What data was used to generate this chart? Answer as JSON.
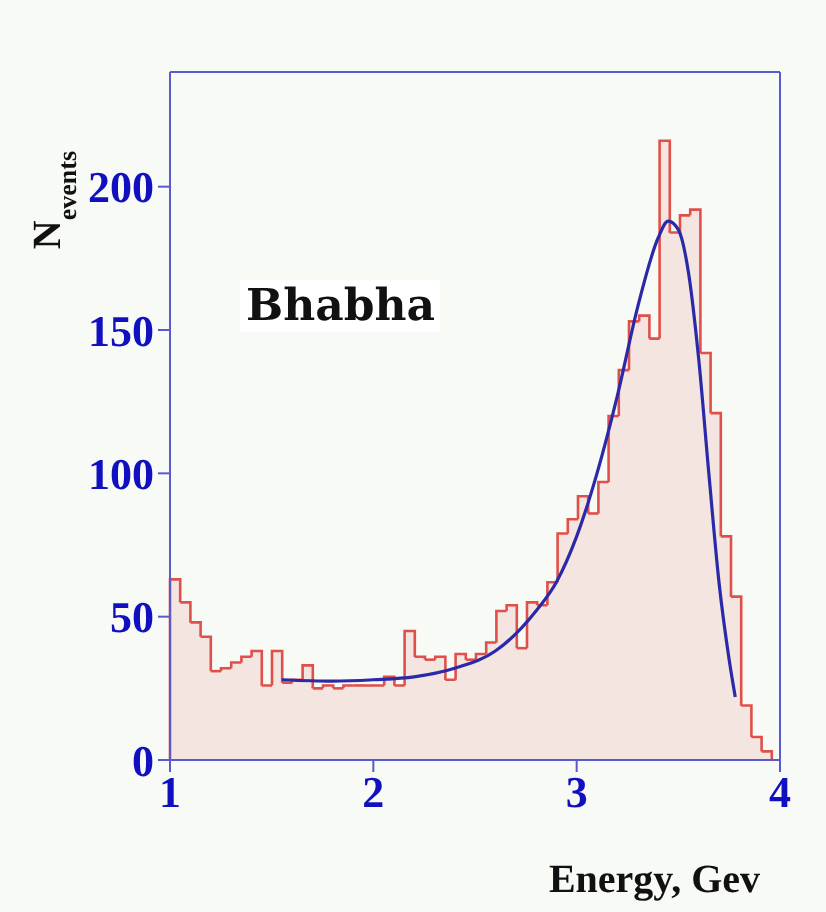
{
  "chart_data": {
    "type": "histogram",
    "xlabel": "Energy, Gev",
    "ylabel": "N$_{events}$",
    "annotations": [
      "Bhabha"
    ],
    "xlim": [
      1,
      4
    ],
    "xticks": [
      1,
      2,
      3,
      4
    ],
    "ylim": [
      0,
      240
    ],
    "yticks": [
      0,
      50,
      100,
      150,
      200
    ],
    "grid": false,
    "legend": false,
    "series": [
      {
        "type": "histogram",
        "color": "#e0504a",
        "bins": [
          1,
          1.05,
          1.1,
          1.15,
          1.2,
          1.25,
          1.3,
          1.35,
          1.4,
          1.45,
          1.5,
          1.55,
          1.6,
          1.65,
          1.7,
          1.75,
          1.8,
          1.85,
          1.9,
          1.95,
          2,
          2.05,
          2.1,
          2.15,
          2.2,
          2.25,
          2.3,
          2.35,
          2.4,
          2.45,
          2.5,
          2.55,
          2.6,
          2.65,
          2.7,
          2.75,
          2.8,
          2.85,
          2.9,
          2.95,
          3,
          3.05,
          3.1,
          3.15,
          3.2,
          3.25,
          3.3,
          3.35,
          3.4,
          3.45,
          3.5,
          3.55,
          3.6,
          3.65,
          3.7,
          3.75,
          3.8,
          3.85,
          3.9,
          3.95
        ],
        "values": [
          63,
          55,
          48,
          43,
          31,
          32,
          34,
          36,
          38,
          26,
          38,
          27,
          28,
          33,
          25,
          26,
          25,
          26,
          26,
          26,
          26,
          29,
          26,
          45,
          36,
          35,
          36,
          28,
          37,
          35,
          37,
          41,
          52,
          54,
          39,
          55,
          54,
          62,
          79,
          84,
          92,
          86,
          97,
          120,
          136,
          153,
          155,
          147,
          216,
          184,
          190,
          192,
          142,
          121,
          78,
          57,
          19,
          8,
          3
        ]
      },
      {
        "type": "line",
        "color": "#2a2aa8",
        "x": [
          1.55,
          1.8,
          2,
          2.2,
          2.4,
          2.6,
          2.8,
          2.9,
          3,
          3.1,
          3.2,
          3.3,
          3.4,
          3.45,
          3.5,
          3.55,
          3.6,
          3.65,
          3.7,
          3.75,
          3.78
        ],
        "values": [
          28,
          27.5,
          28,
          29,
          32,
          38,
          52,
          62,
          78,
          100,
          127,
          158,
          182,
          188,
          185,
          170,
          140,
          100,
          62,
          35,
          22
        ]
      }
    ]
  }
}
